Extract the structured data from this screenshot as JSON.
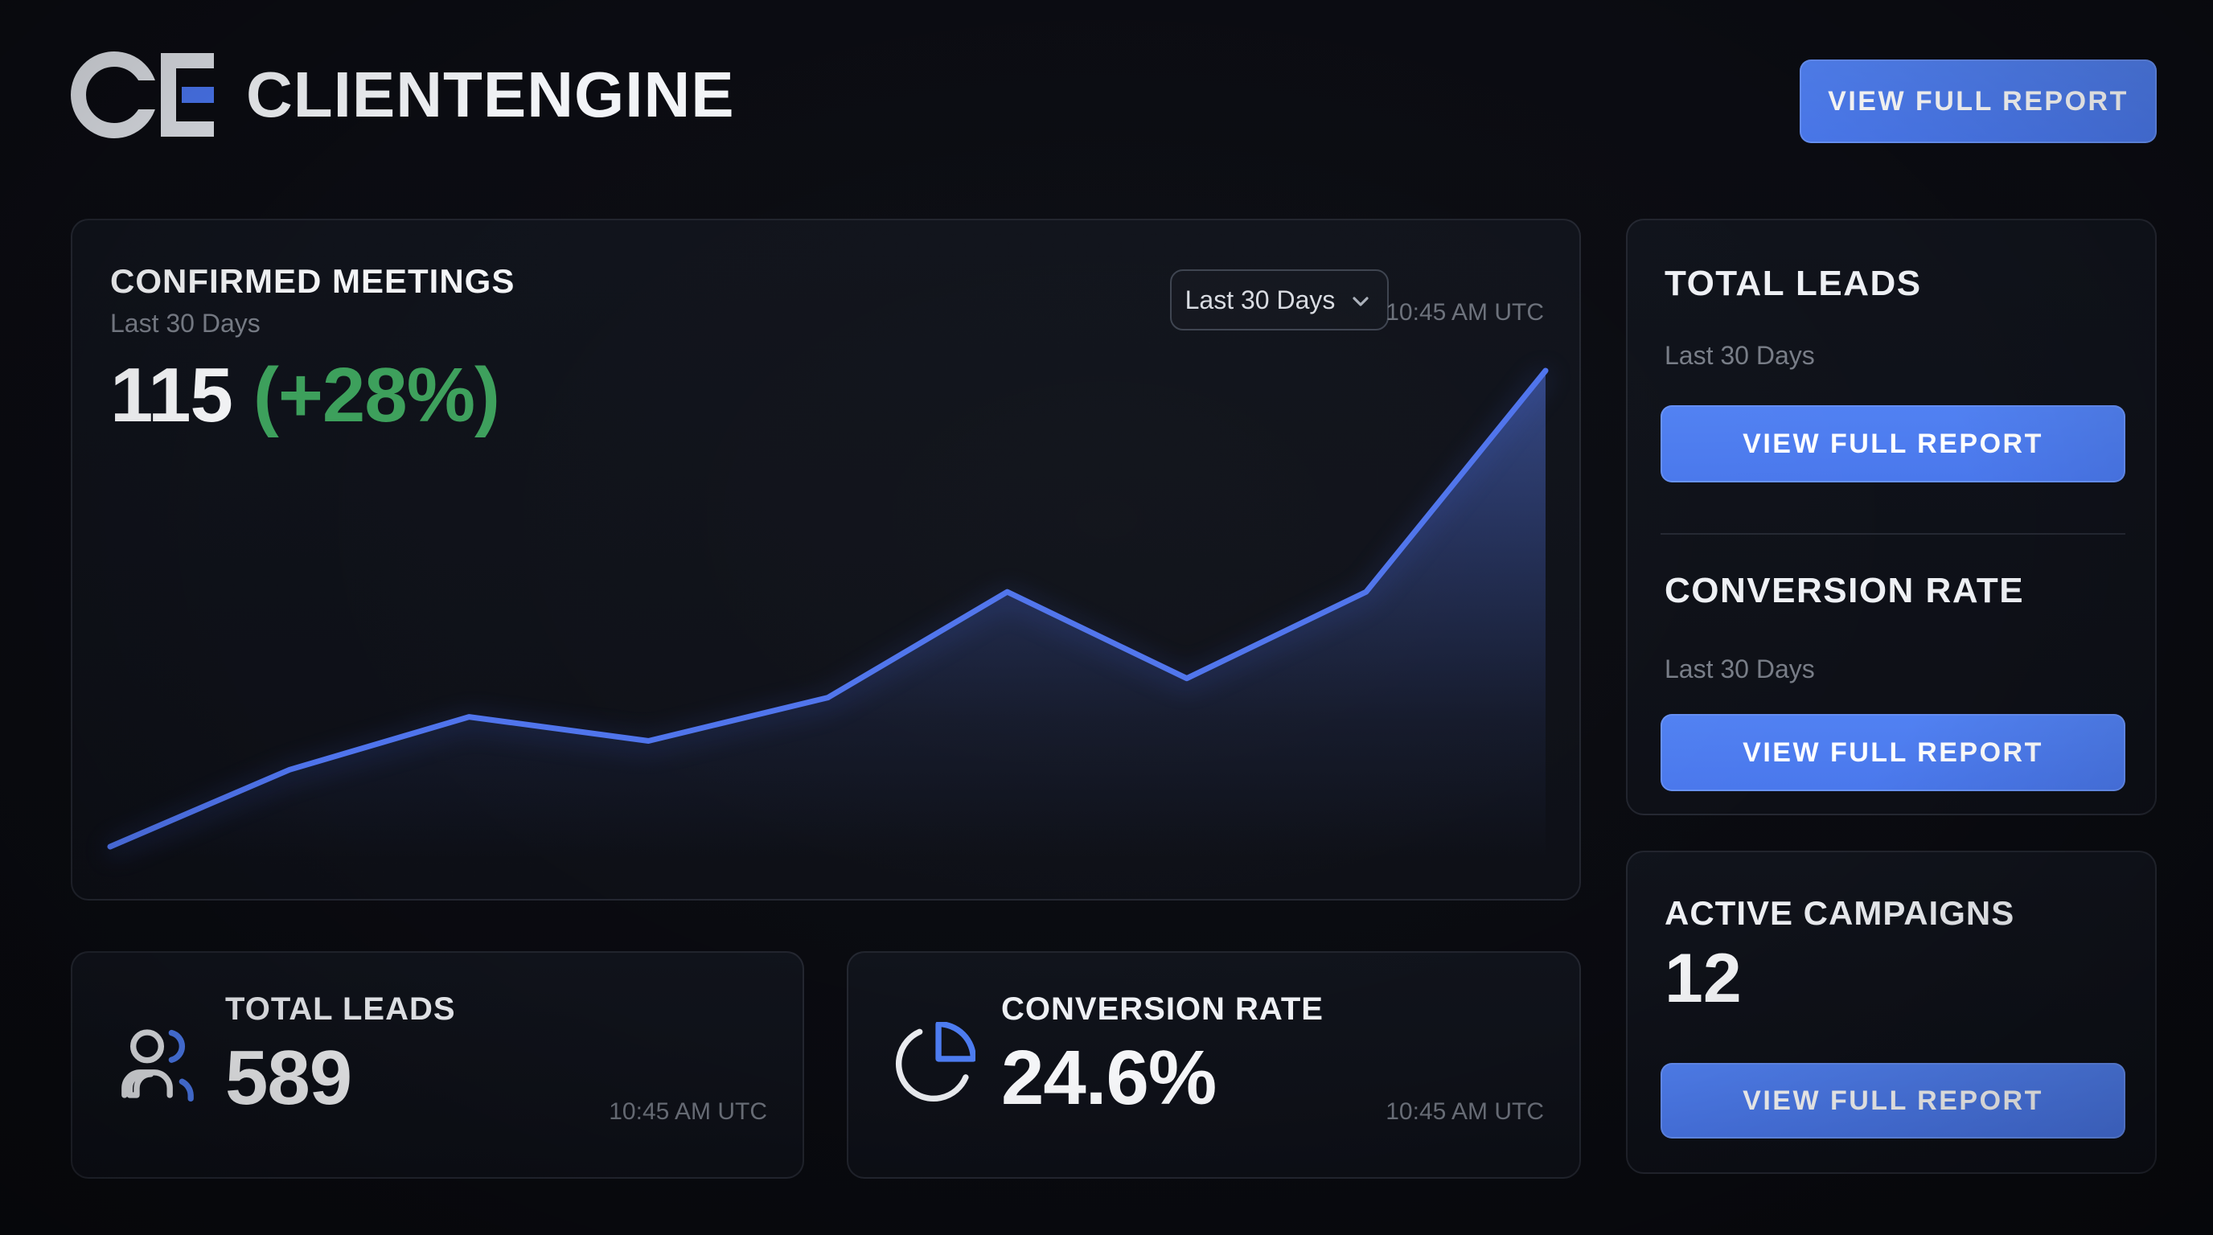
{
  "logo": {
    "monogram": "CE",
    "company": "CLIENTENGINE"
  },
  "header": {
    "view_report_button": "VIEW FULL REPORT"
  },
  "chart_card": {
    "title": "CONFIRMED MEETINGS",
    "subtitle": "Last 30 Days",
    "value": "115",
    "delta": "(+28%)",
    "range_dropdown_value": "Last 30 Days",
    "timestamp": "10:45 AM UTC"
  },
  "chart_data": {
    "type": "area",
    "title": "CONFIRMED MEETINGS — Last 30 Days",
    "x": [
      0,
      1,
      2,
      3,
      4,
      5,
      6,
      7,
      8
    ],
    "values_relative_pct": [
      1,
      17,
      28,
      23,
      32,
      54,
      36,
      54,
      100
    ],
    "xlabel": "",
    "ylabel": "",
    "axes_visible": false,
    "grid": false,
    "legend": false,
    "line_color": "#4f74ec",
    "fill_top": "rgba(86,122,238,0.50)",
    "fill_bottom": "rgba(64,90,180,0)"
  },
  "sidebar": {
    "sections": [
      {
        "title": "TOTAL LEADS",
        "subtitle": "Last 30 Days",
        "button_label": "VIEW FULL REPORT"
      },
      {
        "title": "CONVERSION RATE",
        "subtitle": "Last 30 Days",
        "button_label": "VIEW FULL REPORT"
      }
    ],
    "campaigns": {
      "title": "ACTIVE CAMPAIGNS",
      "value": "12",
      "button_label": "VIEW FULL REPORT"
    }
  },
  "stat_cards": [
    {
      "title": "TOTAL LEADS",
      "value": "589",
      "timestamp": "10:45 AM UTC",
      "icon": "users-icon"
    },
    {
      "title": "CONVERSION RATE",
      "value": "24.6%",
      "timestamp": "10:45 AM UTC",
      "icon": "pie-chart-icon"
    }
  ],
  "colors": {
    "background": "#0a0b10",
    "card_background": "#10131b",
    "accent_blue": "#4d7cf0",
    "line_blue": "#4f74ec",
    "positive_green": "#3da05c",
    "text_primary": "#f4f5f7",
    "text_muted": "#787d87"
  }
}
